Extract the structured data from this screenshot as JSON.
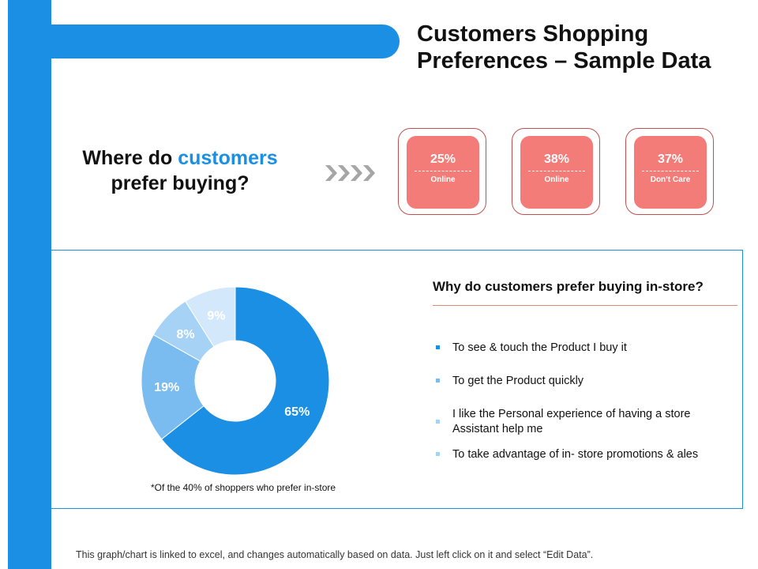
{
  "title": "Customers Shopping Preferences – Sample Data",
  "question": {
    "prefix": "Where do",
    "highlight": "customers",
    "suffix": "prefer buying?"
  },
  "colors": {
    "accent": "#1a8fe3",
    "card_fill": "#f47c78",
    "card_border": "#c0504d",
    "arrow": "#a6a6a6"
  },
  "cards": [
    {
      "value": "25%",
      "label": "Online"
    },
    {
      "value": "38%",
      "label": "Online"
    },
    {
      "value": "37%",
      "label": "Don’t Care"
    }
  ],
  "chart_data": {
    "type": "pie",
    "categories": [
      "",
      "",
      "",
      ""
    ],
    "values": [
      65,
      19,
      8,
      9
    ],
    "labels": [
      "65%",
      "19%",
      "8%",
      "9%"
    ],
    "colors": [
      "#1a8fe3",
      "#7bbcf0",
      "#a6d2f5",
      "#d3e9fb"
    ],
    "label_colors": [
      "#ffffff",
      "#ffffff",
      "#ffffff",
      "#ffffff"
    ],
    "donut": true,
    "note": "*Of the 40% of shoppers who prefer in-store"
  },
  "reasons": {
    "title": "Why do customers prefer buying in-store?",
    "items": [
      {
        "text": "To see & touch the Product I buy it",
        "color": "#1a8fe3"
      },
      {
        "text": "To get the Product quickly",
        "color": "#7bbcf0"
      },
      {
        "text": "I like the Personal experience of having a store Assistant help me",
        "color": "#a6d2f5"
      },
      {
        "text": "To take advantage of in- store promotions & ales",
        "color": "#a6d2f5"
      }
    ]
  },
  "footer": "This graph/chart is linked to excel, and changes automatically based on data. Just left click on it and select “Edit Data”."
}
